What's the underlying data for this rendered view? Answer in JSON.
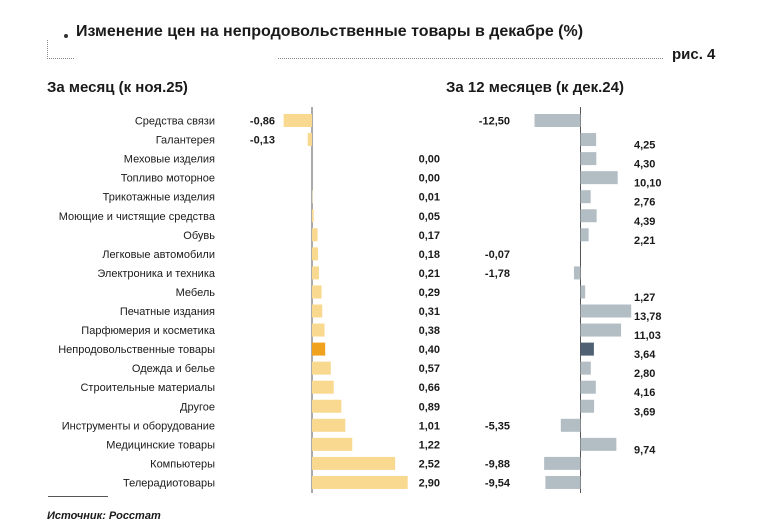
{
  "title": "Изменение цен на непродовольственные товары в декабре (%)",
  "figure_label": "рис. 4",
  "source": "Источник: Росстат",
  "chart_data": [
    {
      "type": "bar",
      "orientation": "horizontal",
      "title": "За месяц (к ноя.25)",
      "categories": [
        "Средства связи",
        "Галантерея",
        "Меховые изделия",
        "Топливо моторное",
        "Трикотажные изделия",
        "Моющие и чистящие средства",
        "Обувь",
        "Легковые автомобили",
        "Электроника и техника",
        "Мебель",
        "Печатные издания",
        "Парфюмерия и косметика",
        "Непродовольственные товары",
        "Одежда и белье",
        "Строительные материалы",
        "Другое",
        "Инструменты и оборудование",
        "Медицинские товары",
        "Компьютеры",
        "Телерадиотовары"
      ],
      "values": [
        -0.86,
        -0.13,
        0.0,
        0.0,
        0.01,
        0.05,
        0.17,
        0.18,
        0.21,
        0.29,
        0.31,
        0.38,
        0.4,
        0.57,
        0.66,
        0.89,
        1.01,
        1.22,
        2.52,
        2.9
      ],
      "labels": [
        "-0,86",
        "-0,13",
        "0,00",
        "0,00",
        "0,01",
        "0,05",
        "0,17",
        "0,18",
        "0,21",
        "0,29",
        "0,31",
        "0,38",
        "0,40",
        "0,57",
        "0,66",
        "0,89",
        "1,01",
        "1,22",
        "2,52",
        "2,90"
      ],
      "highlight_index": 12,
      "colors": {
        "bar": "#f9d98f",
        "highlight": "#f0a21e"
      }
    },
    {
      "type": "bar",
      "orientation": "horizontal",
      "title": "За 12 месяцев (к дек.24)",
      "categories": [
        "Средства связи",
        "Галантерея",
        "Меховые изделия",
        "Топливо моторное",
        "Трикотажные изделия",
        "Моющие и чистящие средства",
        "Обувь",
        "Легковые автомобили",
        "Электроника и техника",
        "Мебель",
        "Печатные издания",
        "Парфюмерия и косметика",
        "Непродовольственные товары",
        "Одежда и белье",
        "Строительные материалы",
        "Другое",
        "Инструменты и оборудование",
        "Медицинские товары",
        "Компьютеры",
        "Телерадиотовары"
      ],
      "values": [
        -12.5,
        4.25,
        4.3,
        10.1,
        2.76,
        4.39,
        2.21,
        -0.07,
        -1.78,
        1.27,
        13.78,
        11.03,
        3.64,
        2.8,
        4.16,
        3.69,
        -5.35,
        9.74,
        -9.88,
        -9.54
      ],
      "labels": [
        "-12,50",
        "4,25",
        "4,30",
        "10,10",
        "2,76",
        "4,39",
        "2,21",
        "-0,07",
        "-1,78",
        "1,27",
        "13,78",
        "11,03",
        "3,64",
        "2,80",
        "4,16",
        "3,69",
        "-5,35",
        "9,74",
        "-9,88",
        "-9,54"
      ],
      "highlight_index": 12,
      "colors": {
        "bar": "#b3bdc4",
        "highlight": "#4f6172"
      }
    }
  ]
}
